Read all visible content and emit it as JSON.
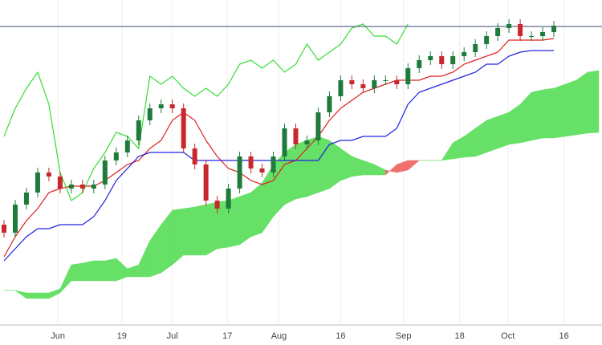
{
  "chart_data": {
    "type": "ichimoku",
    "xticks": [
      {
        "value": 4.8,
        "label": "Jun"
      },
      {
        "value": 10.5,
        "label": "19"
      },
      {
        "value": 15.0,
        "label": "Jul"
      },
      {
        "value": 19.9,
        "label": "17"
      },
      {
        "value": 24.5,
        "label": "Aug"
      },
      {
        "value": 30.0,
        "label": "16"
      },
      {
        "value": 35.6,
        "label": "Sep"
      },
      {
        "value": 40.6,
        "label": "18"
      },
      {
        "value": 44.9,
        "label": "Oct"
      },
      {
        "value": 49.9,
        "label": "16"
      }
    ],
    "xlim": [
      -0.358,
      53.29
    ],
    "ylim": [
      0,
      430
    ],
    "grid": true,
    "up_color": "#1e7b3c",
    "down_color": "#c8282b",
    "price_line": 397,
    "price_line_color": "#3a4a7a",
    "open": [
      150,
      140,
      175,
      190,
      215,
      210,
      195,
      200,
      195,
      200,
      230,
      240,
      255,
      280,
      295,
      300,
      295,
      245,
      225,
      180,
      170,
      195,
      235,
      220,
      215,
      235,
      270,
      250,
      255,
      290,
      310,
      330,
      325,
      320,
      330,
      330,
      325,
      345,
      355,
      360,
      350,
      360,
      365,
      375,
      385,
      395,
      400,
      385,
      385,
      390
    ],
    "high": [
      156,
      181,
      196,
      221,
      221,
      216,
      206,
      206,
      206,
      236,
      246,
      261,
      286,
      301,
      306,
      306,
      301,
      251,
      231,
      186,
      201,
      241,
      241,
      226,
      241,
      276,
      276,
      261,
      296,
      316,
      336,
      336,
      331,
      336,
      336,
      336,
      351,
      361,
      366,
      366,
      366,
      371,
      381,
      391,
      401,
      406,
      406,
      391,
      396,
      404
    ],
    "low": [
      134,
      134,
      169,
      184,
      204,
      189,
      189,
      189,
      189,
      194,
      224,
      234,
      249,
      274,
      289,
      289,
      239,
      219,
      174,
      164,
      164,
      189,
      214,
      209,
      209,
      229,
      244,
      244,
      249,
      284,
      304,
      319,
      314,
      314,
      324,
      319,
      319,
      339,
      349,
      344,
      344,
      354,
      359,
      369,
      379,
      389,
      379,
      379,
      379,
      384
    ],
    "close": [
      140,
      175,
      190,
      215,
      210,
      195,
      200,
      195,
      200,
      230,
      240,
      255,
      280,
      295,
      300,
      295,
      245,
      225,
      180,
      170,
      195,
      235,
      220,
      215,
      235,
      270,
      250,
      255,
      290,
      310,
      330,
      325,
      320,
      330,
      330,
      325,
      345,
      355,
      360,
      350,
      360,
      365,
      375,
      385,
      395,
      400,
      385,
      385,
      390,
      398
    ],
    "cloud": {
      "up_color": "#66e066",
      "down_color": "#f07070",
      "span_a": [
        68,
        68,
        65,
        65,
        65,
        70,
        100,
        102,
        105,
        105,
        108,
        95,
        100,
        130,
        150,
        168,
        170,
        172,
        175,
        178,
        180,
        185,
        190,
        202,
        225,
        240,
        250,
        255,
        260,
        255,
        245,
        235,
        230,
        225,
        218,
        215,
        218,
        230,
        230,
        230,
        252,
        260,
        270,
        280,
        285,
        290,
        300,
        315,
        318,
        320,
        325,
        330,
        340,
        342
      ],
      "span_b": [
        68,
        68,
        58,
        58,
        58,
        65,
        80,
        80,
        80,
        80,
        80,
        85,
        85,
        85,
        90,
        100,
        112,
        112,
        112,
        120,
        122,
        125,
        135,
        140,
        160,
        175,
        182,
        185,
        190,
        195,
        205,
        210,
        212,
        212,
        212,
        225,
        230,
        230,
        230,
        230,
        232,
        234,
        235,
        240,
        245,
        250,
        252,
        255,
        258,
        258,
        260,
        262,
        264,
        265
      ]
    },
    "series": [
      {
        "color": "#e02020",
        "values": [
          110,
          135,
          155,
          170,
          190,
          195,
          198,
          198,
          198,
          205,
          215,
          225,
          230,
          245,
          255,
          280,
          290,
          280,
          255,
          235,
          220,
          215,
          205,
          200,
          205,
          225,
          230,
          245,
          260,
          280,
          295,
          305,
          315,
          320,
          325,
          330,
          330,
          330,
          335,
          335,
          340,
          350,
          355,
          360,
          365,
          380,
          380,
          380,
          380,
          382,
          null,
          null,
          null,
          null
        ]
      },
      {
        "color": "#2020e0",
        "values": [
          105,
          120,
          135,
          145,
          145,
          150,
          150,
          150,
          160,
          180,
          205,
          220,
          235,
          240,
          240,
          240,
          240,
          230,
          230,
          230,
          230,
          230,
          230,
          230,
          230,
          230,
          230,
          230,
          230,
          250,
          255,
          255,
          260,
          260,
          260,
          270,
          300,
          315,
          320,
          325,
          330,
          335,
          340,
          350,
          350,
          360,
          365,
          367,
          367,
          367,
          null,
          null,
          null,
          null
        ]
      },
      {
        "color": "#33dd33",
        "values": [
          260,
          295,
          320,
          340,
          300,
          215,
          180,
          190,
          220,
          240,
          265,
          260,
          245,
          335,
          325,
          335,
          320,
          310,
          320,
          310,
          325,
          350,
          355,
          345,
          355,
          340,
          350,
          375,
          355,
          365,
          375,
          395,
          400,
          385,
          385,
          375,
          400,
          null,
          null,
          null,
          null,
          null,
          null,
          null,
          null,
          null,
          null,
          null,
          null,
          null,
          null,
          null,
          null,
          null
        ]
      }
    ]
  }
}
